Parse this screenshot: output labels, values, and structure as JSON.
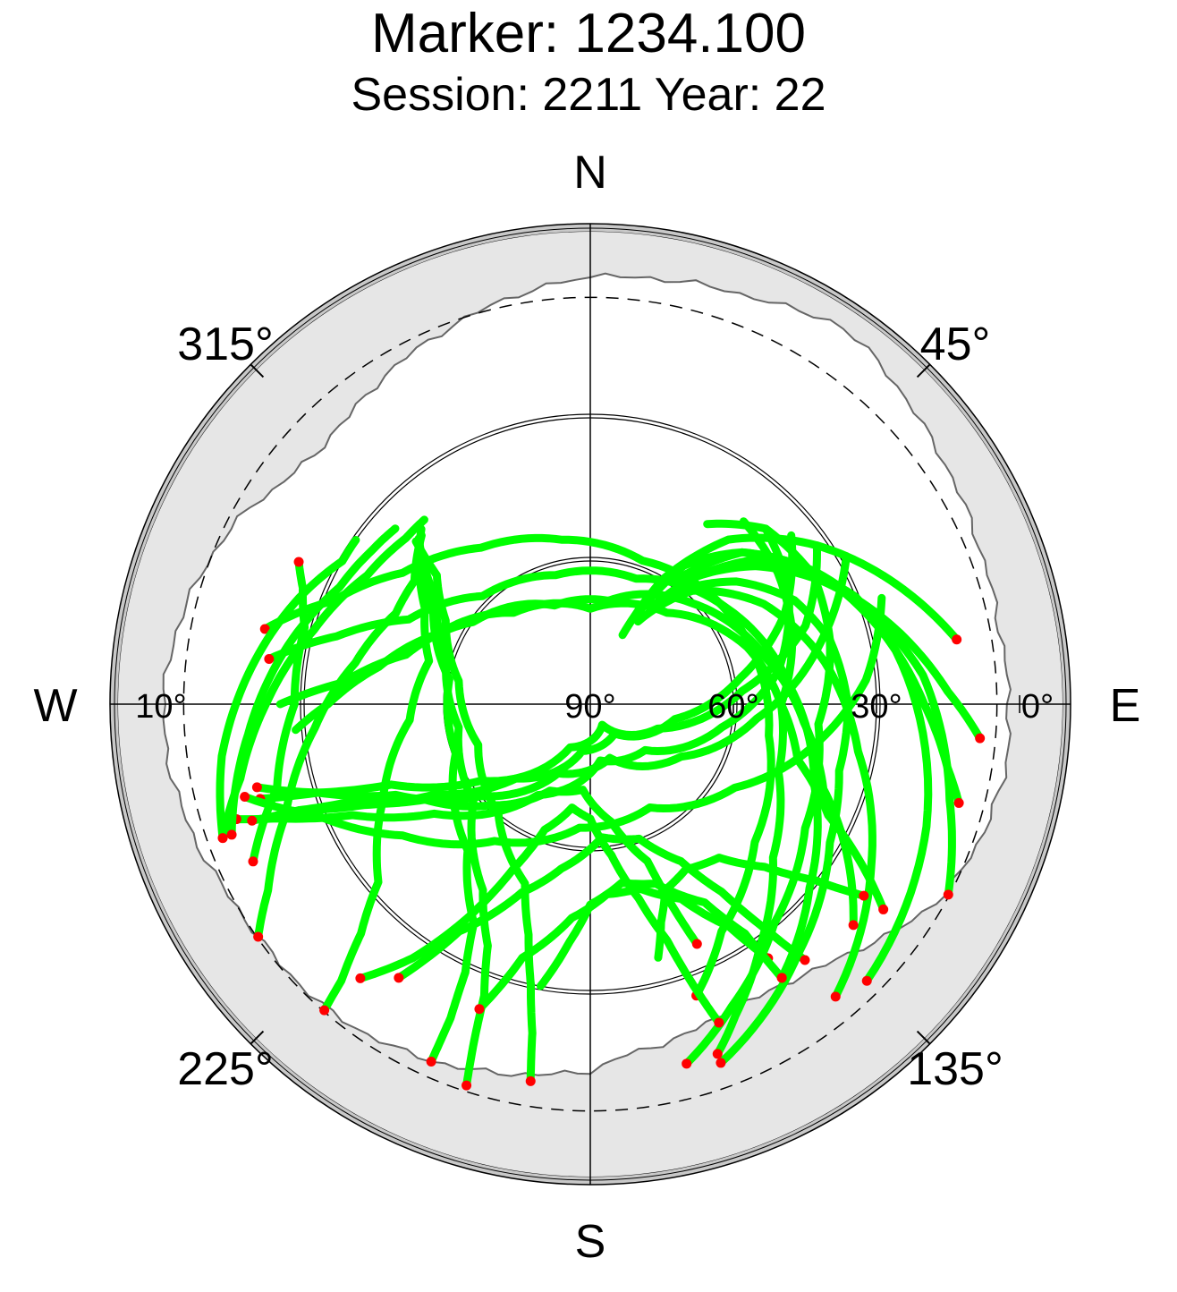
{
  "chart_data": {
    "type": "scatter",
    "title": "Marker: 1234.100",
    "subtitle": "Session: 2211 Year: 22",
    "projection": "polar skyplot (azimuth clockwise from north, elevation toward centre)",
    "compass": {
      "north": "N",
      "east": "E",
      "south": "S",
      "west": "W"
    },
    "azimuth_ticks": [
      {
        "azimuth": 45,
        "label": "45°"
      },
      {
        "azimuth": 135,
        "label": "135°"
      },
      {
        "azimuth": 225,
        "label": "225°"
      },
      {
        "azimuth": 315,
        "label": "315°"
      }
    ],
    "elevation_ticks": [
      {
        "elevation": 90,
        "label": "90°"
      },
      {
        "elevation": 60,
        "label": "60°"
      },
      {
        "elevation": 30,
        "label": "30°"
      },
      {
        "elevation": 0,
        "label": "0°"
      },
      {
        "elevation": 10,
        "label": "10°"
      }
    ],
    "elevation_range": [
      0,
      90
    ],
    "elevation_circles": [
      30,
      60
    ],
    "cutoff_elevation_dashed": 10,
    "grid": true,
    "colors": {
      "track": "#00ff00",
      "track_end": "#ff0000",
      "outer_band": "#c8c8c8",
      "obstruction": "#e6e6e6",
      "grid": "#000000"
    },
    "series": [
      {
        "points": [
          [
            27,
            70
          ],
          [
            34,
            55
          ],
          [
            45,
            45
          ],
          [
            60,
            35
          ],
          [
            80,
            25
          ],
          [
            110,
            15
          ],
          [
            135,
            8
          ]
        ]
      },
      {
        "points": [
          [
            30,
            70
          ],
          [
            42,
            58
          ],
          [
            60,
            48
          ],
          [
            80,
            40
          ],
          [
            100,
            33
          ],
          [
            120,
            22
          ],
          [
            140,
            10
          ]
        ]
      },
      {
        "points": [
          [
            25,
            74
          ],
          [
            30,
            60
          ],
          [
            40,
            45
          ],
          [
            55,
            32
          ],
          [
            70,
            20
          ],
          [
            80,
            12
          ]
        ]
      },
      {
        "points": [
          [
            33,
            65
          ],
          [
            40,
            55
          ],
          [
            50,
            45
          ],
          [
            62,
            35
          ],
          [
            75,
            25
          ],
          [
            88,
            15
          ],
          [
            95,
            8
          ]
        ]
      },
      {
        "points": [
          [
            35,
            58
          ],
          [
            45,
            45
          ],
          [
            60,
            35
          ],
          [
            72,
            28
          ],
          [
            85,
            20
          ],
          [
            105,
            12
          ],
          [
            118,
            5
          ]
        ]
      },
      {
        "points": [
          [
            38,
            60
          ],
          [
            50,
            50
          ],
          [
            63,
            42
          ],
          [
            75,
            38
          ],
          [
            90,
            36
          ],
          [
            105,
            36
          ],
          [
            120,
            32
          ],
          [
            140,
            22
          ],
          [
            160,
            10
          ]
        ]
      },
      {
        "points": [
          [
            40,
            55
          ],
          [
            48,
            45
          ],
          [
            58,
            37
          ],
          [
            68,
            30
          ],
          [
            78,
            26
          ],
          [
            90,
            20
          ],
          [
            100,
            14
          ],
          [
            105,
            10
          ]
        ]
      },
      {
        "points": [
          [
            33,
            45
          ],
          [
            45,
            38
          ],
          [
            60,
            36
          ],
          [
            75,
            38
          ],
          [
            95,
            42
          ],
          [
            120,
            38
          ],
          [
            140,
            30
          ],
          [
            155,
            20
          ],
          [
            165,
            12
          ]
        ]
      },
      {
        "points": [
          [
            40,
            40
          ],
          [
            55,
            42
          ],
          [
            70,
            45
          ],
          [
            90,
            50
          ],
          [
            110,
            48
          ],
          [
            130,
            40
          ],
          [
            145,
            28
          ],
          [
            155,
            18
          ],
          [
            160,
            12
          ]
        ]
      },
      {
        "points": [
          [
            45,
            38
          ],
          [
            60,
            42
          ],
          [
            80,
            50
          ],
          [
            100,
            62
          ],
          [
            130,
            75
          ],
          [
            170,
            78
          ],
          [
            210,
            68
          ],
          [
            235,
            50
          ],
          [
            245,
            35
          ],
          [
            250,
            20
          ],
          [
            252,
            12
          ]
        ]
      },
      {
        "points": [
          [
            50,
            35
          ],
          [
            65,
            45
          ],
          [
            80,
            58
          ],
          [
            100,
            72
          ],
          [
            140,
            82
          ],
          [
            190,
            80
          ],
          [
            225,
            68
          ],
          [
            240,
            52
          ],
          [
            246,
            38
          ],
          [
            250,
            25
          ],
          [
            251,
            15
          ]
        ]
      },
      {
        "points": [
          [
            55,
            32
          ],
          [
            70,
            42
          ],
          [
            85,
            58
          ],
          [
            110,
            75
          ],
          [
            150,
            85
          ],
          [
            205,
            80
          ],
          [
            235,
            62
          ],
          [
            248,
            45
          ],
          [
            252,
            30
          ],
          [
            254,
            18
          ]
        ]
      },
      {
        "points": [
          [
            60,
            28
          ],
          [
            75,
            40
          ],
          [
            95,
            55
          ],
          [
            120,
            68
          ],
          [
            160,
            78
          ],
          [
            205,
            74
          ],
          [
            230,
            60
          ],
          [
            245,
            45
          ],
          [
            252,
            30
          ],
          [
            256,
            18
          ]
        ]
      },
      {
        "points": [
          [
            70,
            25
          ],
          [
            85,
            32
          ],
          [
            100,
            42
          ],
          [
            120,
            55
          ],
          [
            150,
            65
          ],
          [
            185,
            64
          ],
          [
            215,
            55
          ],
          [
            235,
            42
          ],
          [
            248,
            28
          ],
          [
            255,
            15
          ]
        ]
      },
      {
        "points": [
          [
            265,
            28
          ],
          [
            270,
            35
          ],
          [
            280,
            45
          ],
          [
            295,
            55
          ],
          [
            320,
            65
          ],
          [
            360,
            70
          ],
          [
            40,
            65
          ],
          [
            70,
            55
          ],
          [
            90,
            50
          ],
          [
            105,
            45
          ],
          [
            115,
            35
          ],
          [
            120,
            25
          ],
          [
            125,
            15
          ]
        ]
      },
      {
        "points": [
          [
            270,
            25
          ],
          [
            275,
            38
          ],
          [
            285,
            50
          ],
          [
            305,
            60
          ],
          [
            340,
            68
          ],
          [
            10,
            68
          ],
          [
            45,
            60
          ],
          [
            75,
            52
          ],
          [
            95,
            45
          ],
          [
            110,
            38
          ],
          [
            120,
            28
          ],
          [
            130,
            18
          ]
        ]
      },
      {
        "points": [
          [
            278,
            22
          ],
          [
            285,
            35
          ],
          [
            295,
            48
          ],
          [
            315,
            58
          ],
          [
            345,
            62
          ],
          [
            20,
            62
          ],
          [
            55,
            55
          ],
          [
            85,
            48
          ],
          [
            110,
            40
          ],
          [
            130,
            30
          ],
          [
            145,
            20
          ]
        ]
      },
      {
        "points": [
          [
            283,
            20
          ],
          [
            292,
            32
          ],
          [
            305,
            42
          ],
          [
            325,
            50
          ],
          [
            350,
            55
          ],
          [
            20,
            58
          ],
          [
            60,
            55
          ],
          [
            100,
            52
          ],
          [
            130,
            45
          ],
          [
            150,
            35
          ],
          [
            160,
            25
          ]
        ]
      },
      {
        "points": [
          [
            313,
            40
          ],
          [
            310,
            48
          ],
          [
            300,
            55
          ],
          [
            280,
            62
          ],
          [
            250,
            65
          ],
          [
            220,
            60
          ],
          [
            200,
            50
          ],
          [
            195,
            40
          ],
          [
            192,
            30
          ],
          [
            190,
            20
          ],
          [
            189,
            10
          ]
        ]
      },
      {
        "points": [
          [
            314,
            40
          ],
          [
            305,
            50
          ],
          [
            290,
            58
          ],
          [
            260,
            62
          ],
          [
            230,
            58
          ],
          [
            210,
            45
          ],
          [
            203,
            35
          ],
          [
            200,
            25
          ],
          [
            199,
            15
          ],
          [
            198,
            6
          ]
        ]
      },
      {
        "points": [
          [
            313,
            41
          ],
          [
            300,
            52
          ],
          [
            280,
            60
          ],
          [
            250,
            60
          ],
          [
            220,
            50
          ],
          [
            208,
            38
          ],
          [
            205,
            28
          ],
          [
            204,
            18
          ],
          [
            204,
            8
          ]
        ]
      },
      {
        "points": [
          [
            316,
            39
          ],
          [
            300,
            50
          ],
          [
            285,
            55
          ],
          [
            265,
            52
          ],
          [
            245,
            42
          ],
          [
            230,
            32
          ],
          [
            225,
            22
          ],
          [
            222,
            12
          ],
          [
            221,
            5
          ]
        ]
      },
      {
        "points": [
          [
            315,
            40
          ],
          [
            305,
            45
          ],
          [
            295,
            45
          ],
          [
            280,
            40
          ],
          [
            265,
            32
          ],
          [
            250,
            22
          ],
          [
            240,
            12
          ],
          [
            235,
            5
          ]
        ]
      },
      {
        "points": [
          [
            318,
            38
          ],
          [
            312,
            38
          ],
          [
            300,
            36
          ],
          [
            285,
            30
          ],
          [
            270,
            22
          ],
          [
            258,
            15
          ],
          [
            250,
            8
          ]
        ]
      },
      {
        "points": [
          [
            312,
            35
          ],
          [
            305,
            34
          ],
          [
            295,
            32
          ],
          [
            280,
            25
          ],
          [
            265,
            18
          ],
          [
            250,
            10
          ]
        ]
      },
      {
        "points": [
          [
            305,
            30
          ],
          [
            300,
            30
          ],
          [
            290,
            25
          ],
          [
            275,
            18
          ],
          [
            262,
            12
          ],
          [
            250,
            8
          ]
        ]
      },
      {
        "points": [
          [
            296,
            22
          ],
          [
            292,
            25
          ],
          [
            285,
            28
          ],
          [
            270,
            28
          ],
          [
            255,
            22
          ],
          [
            245,
            12
          ]
        ]
      },
      {
        "points": [
          [
            250,
            25
          ],
          [
            248,
            35
          ],
          [
            240,
            50
          ],
          [
            225,
            60
          ],
          [
            205,
            70
          ],
          [
            185,
            72
          ],
          [
            170,
            65
          ],
          [
            160,
            55
          ],
          [
            158,
            45
          ],
          [
            156,
            35
          ]
        ]
      },
      {
        "points": [
          [
            215,
            20
          ],
          [
            210,
            35
          ],
          [
            200,
            48
          ],
          [
            190,
            55
          ],
          [
            175,
            62
          ],
          [
            160,
            60
          ],
          [
            150,
            52
          ],
          [
            145,
            42
          ],
          [
            142,
            30
          ],
          [
            140,
            20
          ]
        ]
      },
      {
        "points": [
          [
            200,
            22
          ],
          [
            195,
            35
          ],
          [
            185,
            45
          ],
          [
            175,
            50
          ],
          [
            165,
            50
          ],
          [
            155,
            45
          ],
          [
            148,
            35
          ],
          [
            145,
            25
          ]
        ]
      },
      {
        "points": [
          [
            190,
            30
          ],
          [
            185,
            40
          ],
          [
            180,
            48
          ],
          [
            170,
            52
          ],
          [
            160,
            50
          ],
          [
            150,
            42
          ],
          [
            146,
            32
          ],
          [
            145,
            20
          ]
        ]
      },
      {
        "points": [
          [
            165,
            35
          ],
          [
            162,
            42
          ],
          [
            158,
            48
          ],
          [
            150,
            50
          ],
          [
            140,
            48
          ],
          [
            133,
            40
          ],
          [
            128,
            30
          ],
          [
            125,
            20
          ]
        ]
      },
      {
        "points": [
          [
            220,
            15
          ],
          [
            215,
            25
          ],
          [
            210,
            38
          ],
          [
            205,
            52
          ],
          [
            200,
            62
          ],
          [
            190,
            68
          ],
          [
            180,
            66
          ],
          [
            172,
            58
          ],
          [
            166,
            48
          ],
          [
            162,
            38
          ],
          [
            160,
            28
          ],
          [
            158,
            18
          ]
        ]
      }
    ]
  }
}
